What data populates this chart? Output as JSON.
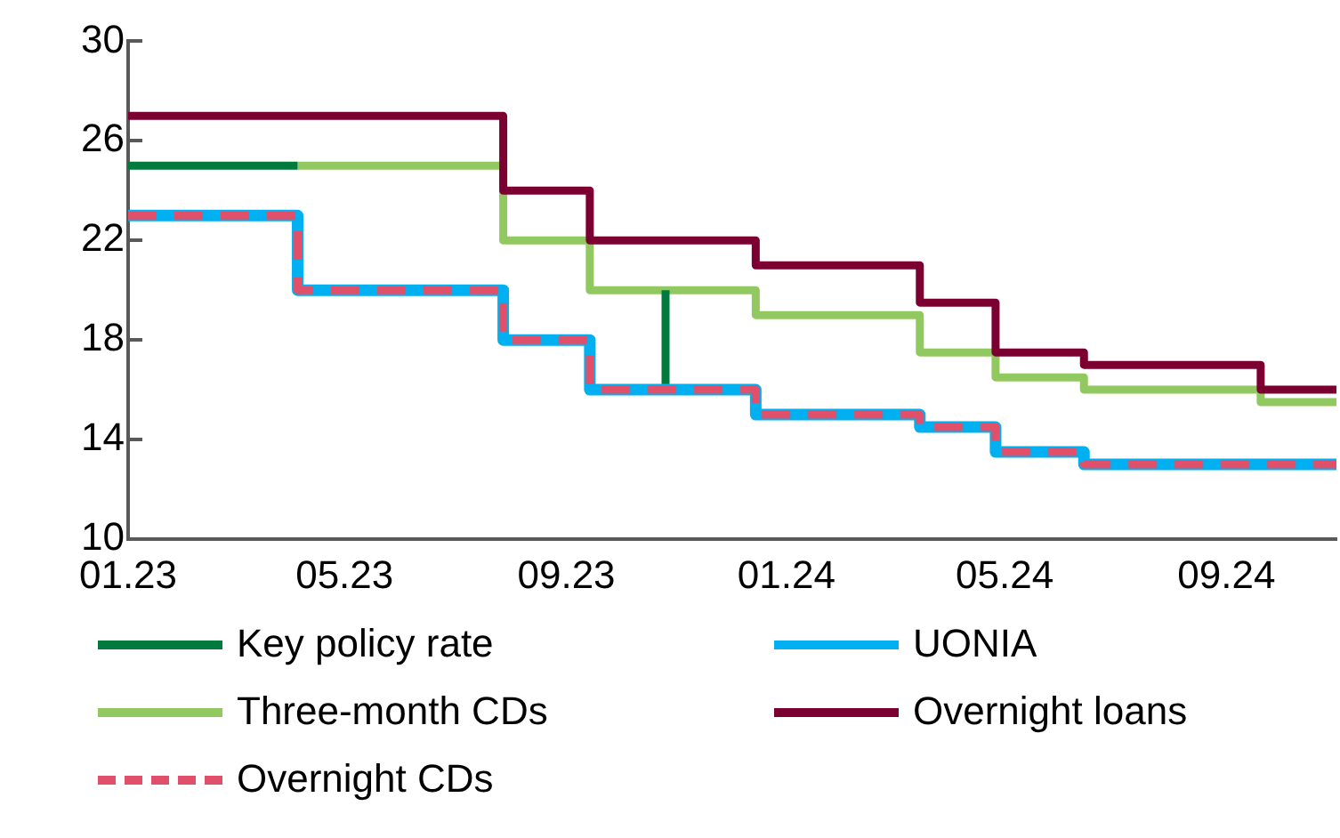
{
  "chart_data": {
    "type": "step",
    "xlim": [
      "2023-01-01",
      "2024-11-01"
    ],
    "xticks": [
      {
        "value": "2023-01-01",
        "label": "01.23"
      },
      {
        "value": "2023-05-01",
        "label": "05.23"
      },
      {
        "value": "2023-09-01",
        "label": "09.23"
      },
      {
        "value": "2024-01-01",
        "label": "01.24"
      },
      {
        "value": "2024-05-01",
        "label": "05.24"
      },
      {
        "value": "2024-09-01",
        "label": "09.24"
      }
    ],
    "ylim": [
      10,
      30
    ],
    "yticks": [
      10,
      14,
      18,
      22,
      26,
      30
    ],
    "grid": false,
    "legend": "bottom",
    "line_style": "solid",
    "marker": "none",
    "series": [
      {
        "name": "Key policy rate",
        "color": "#007a3d",
        "x": [
          "2023-01-01",
          "2023-04-05",
          "2023-07-01",
          "2023-10-26",
          "2023-10-26"
        ],
        "values": [
          25,
          25,
          null,
          20,
          16
        ]
      },
      {
        "name": "UONIA",
        "color": "#00b0f0",
        "x": [
          "2023-01-01",
          "2023-04-05",
          "2023-07-28",
          "2023-09-14",
          "2023-12-15",
          "2024-03-15",
          "2024-04-26",
          "2024-06-14",
          "2024-11-01"
        ],
        "values": [
          23,
          20,
          18,
          16,
          15,
          14.5,
          13.5,
          13,
          13
        ]
      },
      {
        "name": "Three-month CDs",
        "color": "#92c860",
        "x": [
          "2023-04-05",
          "2023-07-28",
          "2023-09-14",
          "2023-12-15",
          "2024-03-15",
          "2024-04-26",
          "2024-06-14",
          "2024-09-20",
          "2024-11-01"
        ],
        "values": [
          25,
          22,
          20,
          19,
          17.5,
          16.5,
          16,
          15.5,
          15.5
        ]
      },
      {
        "name": "Overnight loans",
        "color": "#7b0031",
        "x": [
          "2023-01-01",
          "2023-07-28",
          "2023-09-14",
          "2023-12-15",
          "2024-03-15",
          "2024-04-26",
          "2024-06-14",
          "2024-09-20",
          "2024-11-01"
        ],
        "values": [
          27,
          24,
          22,
          21,
          19.5,
          17.5,
          17,
          16,
          16
        ]
      },
      {
        "name": "Overnight CDs",
        "color": "#e0506a",
        "line_style": "dashed",
        "x": [
          "2023-01-01",
          "2023-04-05",
          "2023-07-28",
          "2023-09-14",
          "2023-12-15",
          "2024-03-15",
          "2024-04-26",
          "2024-06-14",
          "2024-11-01"
        ],
        "values": [
          23,
          20,
          18,
          16,
          15,
          14.5,
          13.5,
          13,
          13
        ]
      }
    ]
  }
}
